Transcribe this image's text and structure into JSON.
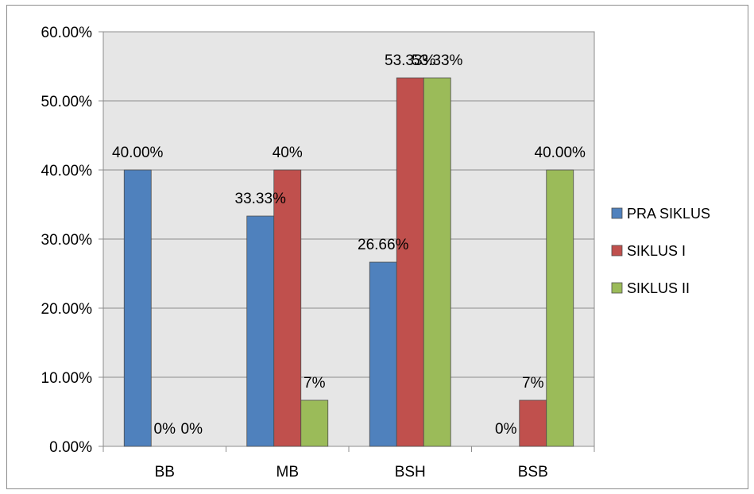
{
  "chart_data": {
    "type": "bar",
    "categories": [
      "BB",
      "MB",
      "BSH",
      "BSB"
    ],
    "series": [
      {
        "name": "PRA SIKLUS",
        "color": "#4f81bd",
        "values": [
          40.0,
          33.33,
          26.66,
          0.0
        ],
        "labels": [
          "40.00%",
          "33.33%",
          "26.66%",
          "0%"
        ]
      },
      {
        "name": "SIKLUS I",
        "color": "#c0504d",
        "values": [
          0.0,
          40.0,
          53.33,
          6.67
        ],
        "labels": [
          "0%",
          "40%",
          "53.33%",
          "7%"
        ]
      },
      {
        "name": "SIKLUS II",
        "color": "#9bbb59",
        "values": [
          0.0,
          6.67,
          53.33,
          40.0
        ],
        "labels": [
          "0%",
          "7%",
          "53.33%",
          "40.00%"
        ]
      }
    ],
    "y_ticks": [
      "0.00%",
      "10.00%",
      "20.00%",
      "30.00%",
      "40.00%",
      "50.00%",
      "60.00%"
    ],
    "ylim": [
      0,
      60
    ],
    "grid": true,
    "legend_position": "right",
    "plot_background": "#e6e6e6",
    "title": "",
    "xlabel": "",
    "ylabel": ""
  }
}
